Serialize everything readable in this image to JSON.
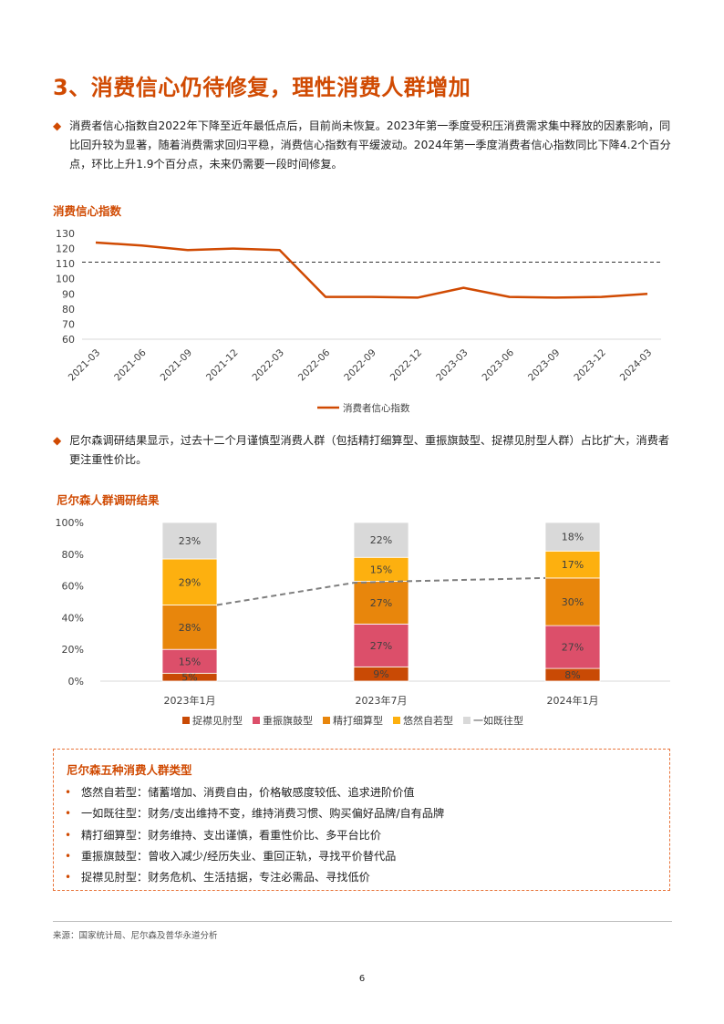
{
  "heading": "3、消费信心仍待修复，理性消费人群增加",
  "bullet1": "消费者信心指数自2022年下降至近年最低点后，目前尚未恢复。2023年第一季度受积压消费需求集中释放的因素影响，同比回升较为显著，随着消费需求回归平稳，消费信心指数有平缓波动。2024年第一季度消费者信心指数同比下降4.2个百分点，环比上升1.9个百分点，未来仍需要一段时间修复。",
  "bullet2": "尼尔森调研结果显示，过去十二个月谨慎型消费人群（包括精打细算型、重振旗鼓型、捉襟见肘型人群）占比扩大，消费者更注重性价比。",
  "bullet_marker": "◆",
  "colors": {
    "accent": "#d04a02",
    "line": "#d04a02",
    "dashed": "#333333",
    "trend": "#7f7f7f"
  },
  "chart_data": [
    {
      "type": "line",
      "title": "消费信心指数",
      "x": [
        "2021-03",
        "2021-06",
        "2021-09",
        "2021-12",
        "2022-03",
        "2022-06",
        "2022-09",
        "2022-12",
        "2023-03",
        "2023-06",
        "2023-09",
        "2023-12",
        "2024-03"
      ],
      "series": [
        {
          "name": "消费者信心指数",
          "values": [
            124,
            122,
            119,
            120,
            119,
            88,
            88,
            87.5,
            94,
            88,
            87.5,
            88,
            90
          ]
        }
      ],
      "reference_line": 111,
      "yticks": [
        60,
        70,
        80,
        90,
        100,
        110,
        120,
        130
      ],
      "ylim": [
        60,
        130
      ],
      "legend": "bottom"
    },
    {
      "type": "bar",
      "title": "尼尔森人群调研结果",
      "stacked": true,
      "categories": [
        "2023年1月",
        "2023年7月",
        "2024年1月"
      ],
      "series": [
        {
          "name": "捉襟见肘型",
          "color": "#c94a05",
          "values": [
            5,
            9,
            8
          ],
          "labels": [
            "5%",
            "9%",
            "8%"
          ]
        },
        {
          "name": "重振旗鼓型",
          "color": "#dc4f6a",
          "values": [
            15,
            27,
            27
          ],
          "labels": [
            "15%",
            "27%",
            "27%"
          ]
        },
        {
          "name": "精打细算型",
          "color": "#e8860c",
          "values": [
            28,
            27,
            30
          ],
          "labels": [
            "28%",
            "27%",
            "30%"
          ]
        },
        {
          "name": "悠然自若型",
          "color": "#fdb00f",
          "values": [
            29,
            15,
            17
          ],
          "labels": [
            "29%",
            "15%",
            "17%"
          ]
        },
        {
          "name": "一如既往型",
          "color": "#d9d9d9",
          "values": [
            23,
            22,
            18
          ],
          "labels": [
            "23%",
            "22%",
            "18%"
          ]
        }
      ],
      "trend_line": [
        48,
        63,
        65
      ],
      "yticks": [
        "0%",
        "20%",
        "40%",
        "60%",
        "80%",
        "100%"
      ],
      "ylim": [
        0,
        100
      ],
      "legend": "bottom"
    }
  ],
  "box": {
    "title": "尼尔森五种消费人群类型",
    "marker": "•",
    "items": [
      "悠然自若型：储蓄增加、消费自由，价格敏感度较低、追求进阶价值",
      "一如既往型：财务/支出维持不变，维持消费习惯、购买偏好品牌/自有品牌",
      "精打细算型：财务维持、支出谨慎，看重性价比、多平台比价",
      "重振旗鼓型：曾收入减少/经历失业、重回正轨，寻找平价替代品",
      "捉襟见肘型：财务危机、生活拮据，专注必需品、寻找低价"
    ]
  },
  "source": "来源：国家统计局、尼尔森及普华永道分析",
  "page_number": "6"
}
